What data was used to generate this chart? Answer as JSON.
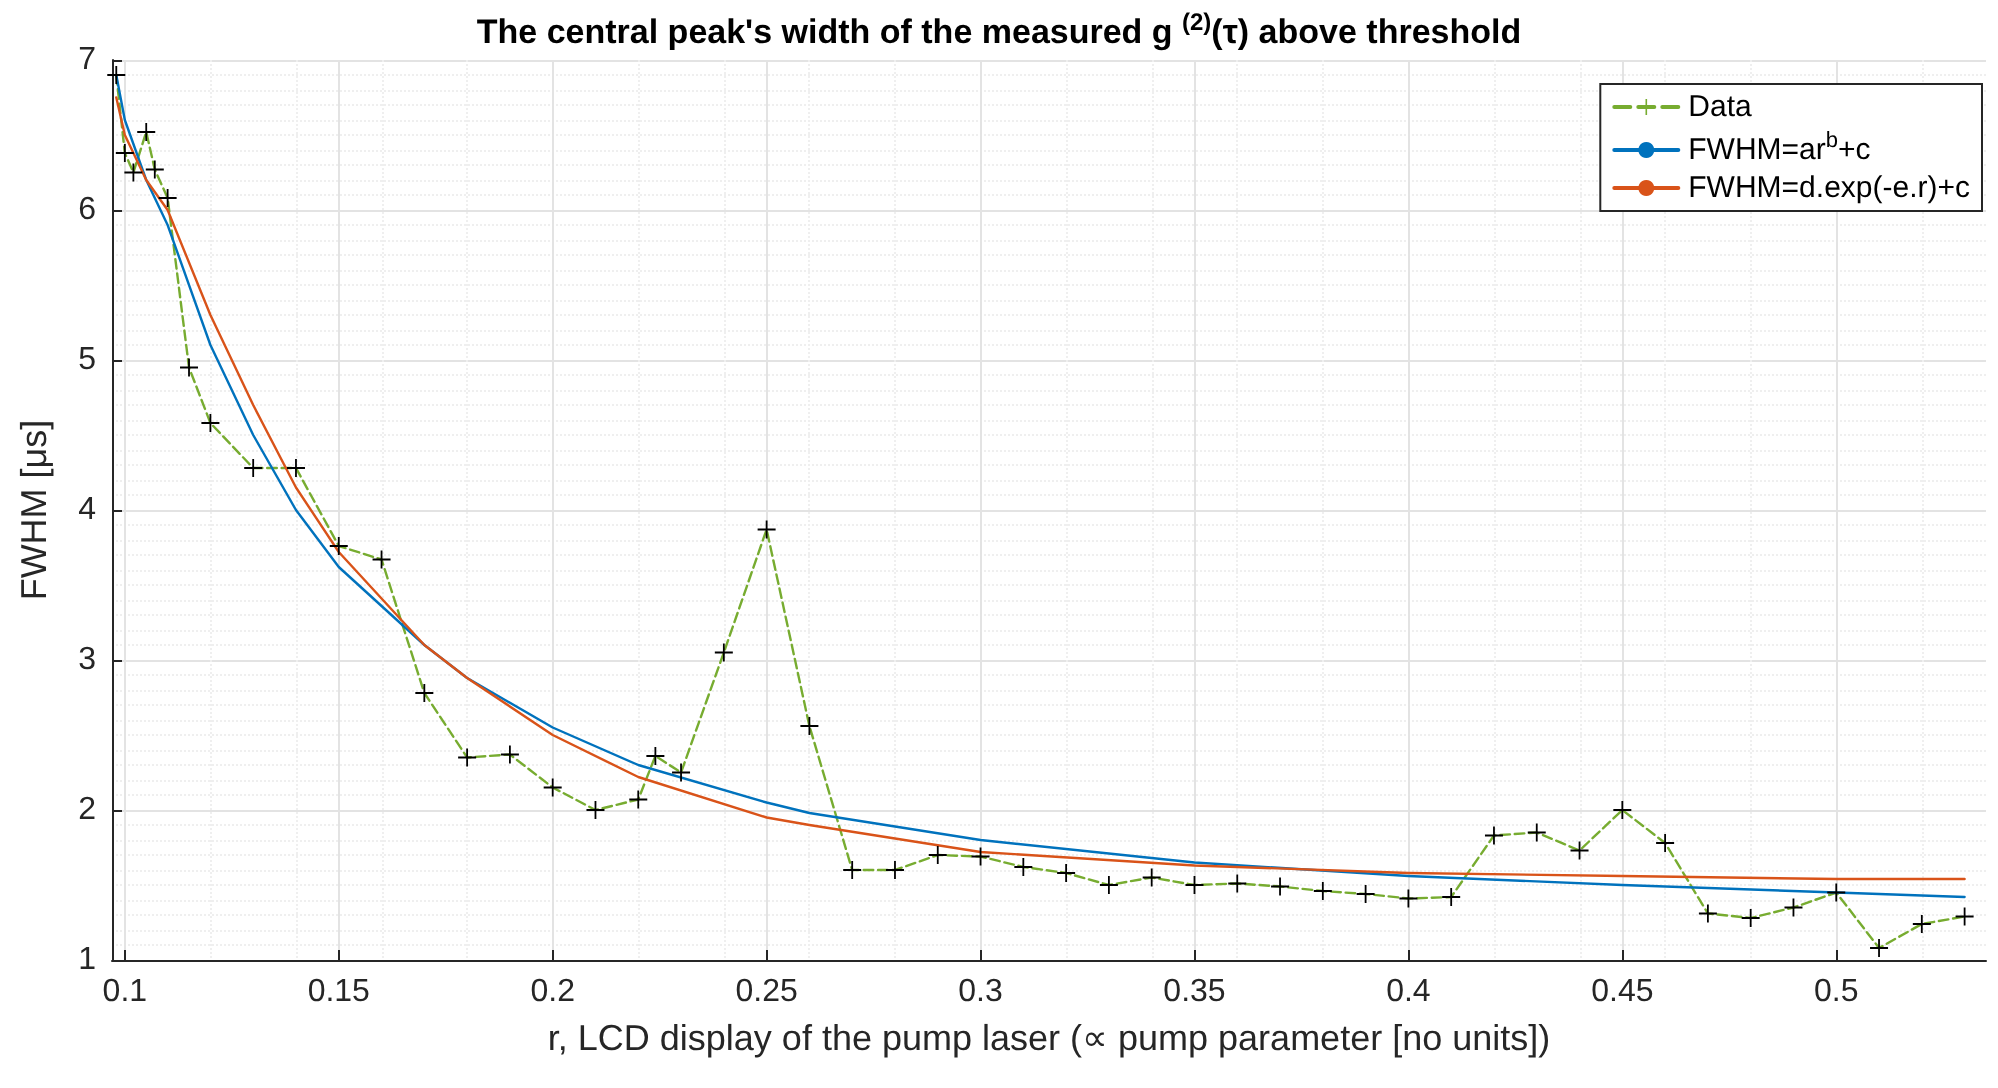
{
  "chart_data": {
    "type": "line",
    "title": "The central peak's width of the measured g $^{(2)}$(τ) above threshold",
    "xlabel": "r, LCD display of the pump laser (∝ pump parameter [no units])",
    "ylabel": "FWHM [μs]",
    "xlim": [
      0.097,
      0.535
    ],
    "ylim": [
      1,
      7
    ],
    "xticks": [
      0.1,
      0.15,
      0.2,
      0.25,
      0.3,
      0.35,
      0.4,
      0.45,
      0.5
    ],
    "yticks": [
      1,
      2,
      3,
      4,
      5,
      6,
      7
    ],
    "grid": true,
    "legend": "top right",
    "series": [
      {
        "name": "Data",
        "color": "#77ac30",
        "marker": "cross",
        "line_style": "dashed",
        "x": [
          0.098,
          0.1,
          0.102,
          0.105,
          0.107,
          0.11,
          0.115,
          0.12,
          0.13,
          0.14,
          0.15,
          0.16,
          0.17,
          0.18,
          0.19,
          0.2,
          0.21,
          0.22,
          0.224,
          0.23,
          0.24,
          0.25,
          0.26,
          0.27,
          0.28,
          0.29,
          0.3,
          0.31,
          0.32,
          0.33,
          0.34,
          0.35,
          0.36,
          0.37,
          0.38,
          0.39,
          0.4,
          0.41,
          0.42,
          0.43,
          0.44,
          0.45,
          0.46,
          0.47,
          0.48,
          0.49,
          0.5,
          0.51,
          0.52,
          0.53
        ],
        "values": [
          6.9,
          6.38,
          6.25,
          6.52,
          6.27,
          6.08,
          4.95,
          4.58,
          4.28,
          4.28,
          3.76,
          3.67,
          2.78,
          2.35,
          2.37,
          2.15,
          2.0,
          2.07,
          2.36,
          2.25,
          3.05,
          3.87,
          2.56,
          1.6,
          1.6,
          1.7,
          1.69,
          1.62,
          1.58,
          1.5,
          1.55,
          1.5,
          1.51,
          1.49,
          1.46,
          1.44,
          1.41,
          1.42,
          1.83,
          1.85,
          1.73,
          2.0,
          1.78,
          1.31,
          1.28,
          1.35,
          1.45,
          1.08,
          1.24,
          1.29
        ]
      },
      {
        "name": "FWHM=ar$^{b}$+c",
        "color": "#0072bd",
        "marker": "none",
        "line_style": "solid",
        "x": [
          0.098,
          0.1,
          0.105,
          0.11,
          0.12,
          0.13,
          0.14,
          0.15,
          0.17,
          0.18,
          0.2,
          0.22,
          0.25,
          0.26,
          0.3,
          0.35,
          0.4,
          0.45,
          0.5,
          0.53
        ],
        "values": [
          6.9,
          6.6,
          6.2,
          5.9,
          5.1,
          4.5,
          4.0,
          3.62,
          3.1,
          2.88,
          2.55,
          2.3,
          2.05,
          1.98,
          1.8,
          1.65,
          1.56,
          1.5,
          1.45,
          1.42
        ]
      },
      {
        "name": "FWHM=d.exp(-e.r)+c",
        "color": "#d95319",
        "marker": "none",
        "line_style": "solid",
        "x": [
          0.098,
          0.1,
          0.105,
          0.11,
          0.12,
          0.13,
          0.14,
          0.15,
          0.17,
          0.18,
          0.2,
          0.22,
          0.25,
          0.26,
          0.3,
          0.35,
          0.4,
          0.45,
          0.5,
          0.53
        ],
        "values": [
          6.75,
          6.5,
          6.2,
          6.0,
          5.3,
          4.7,
          4.15,
          3.72,
          3.1,
          2.88,
          2.5,
          2.22,
          1.95,
          1.9,
          1.72,
          1.63,
          1.58,
          1.56,
          1.54,
          1.54
        ]
      }
    ]
  }
}
